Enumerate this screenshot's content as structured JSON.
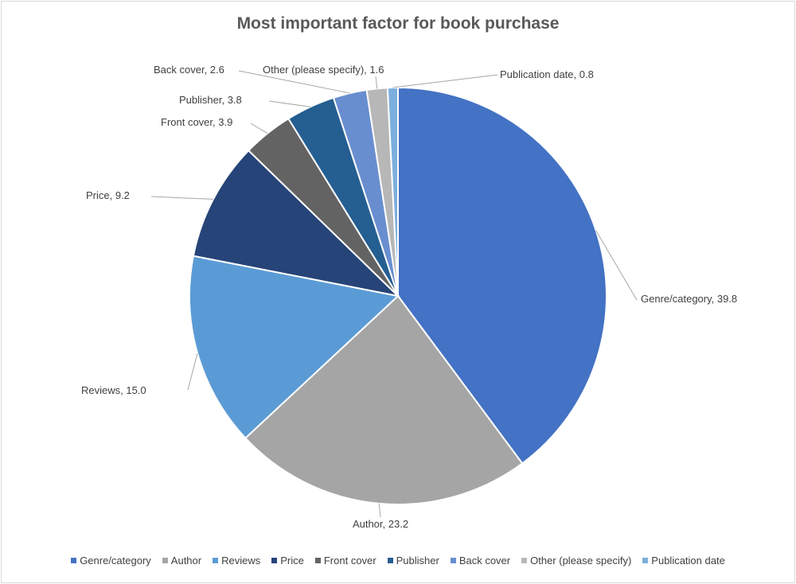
{
  "chart_data": {
    "type": "pie",
    "title": "Most important factor for book purchase",
    "categories": [
      "Genre/category",
      "Author",
      "Reviews",
      "Price",
      "Front cover",
      "Publisher",
      "Back cover",
      "Other (please specify)",
      "Publication date"
    ],
    "values": [
      39.8,
      23.2,
      15.0,
      9.2,
      3.9,
      3.8,
      2.6,
      1.6,
      0.8
    ],
    "colors": [
      "#4472c4",
      "#a5a5a5",
      "#5b9bd5",
      "#264478",
      "#636363",
      "#255e91",
      "#698ed0",
      "#b7b7b7",
      "#7cafdd"
    ],
    "data_labels": [
      "Genre/category, 39.8",
      "Author, 23.2",
      "Reviews, 15.0",
      "Price, 9.2",
      "Front cover, 3.9",
      "Publisher, 3.8",
      "Back cover, 2.6",
      "Other (please specify), 1.6",
      "Publication date, 0.8"
    ],
    "legend_position": "bottom"
  }
}
